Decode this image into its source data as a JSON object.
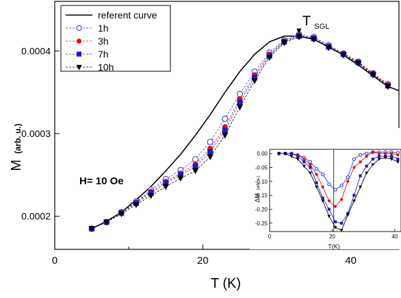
{
  "chart_data": [
    {
      "type": "scatter",
      "xlabel": "T (K)",
      "ylabel_main": "M",
      "ylabel_sub": "(arb. u.)",
      "xlim": [
        0,
        46.5
      ],
      "ylim": [
        0.00016,
        0.00046
      ],
      "x_ticks": [
        0,
        20,
        40
      ],
      "y_ticks": [
        0.0002,
        0.0003,
        0.0004
      ],
      "y_tick_labels": [
        "0.0002",
        "0.0003",
        "0.0004"
      ],
      "annotation_field": "H= 10 Oe",
      "annotation_tsgl_main": "T",
      "annotation_tsgl_sub": "SGL",
      "tsgl_x": 33,
      "legend_position": "top-left",
      "series": [
        {
          "name": "referent curve",
          "style": "line",
          "color": "#000000",
          "x": [
            5,
            7,
            9,
            11,
            13,
            15,
            17,
            19,
            21,
            23,
            25,
            27,
            29,
            31,
            33,
            35,
            37,
            39,
            41,
            43,
            45,
            46.5
          ],
          "y": [
            0.000185,
            0.000194,
            0.000205,
            0.00022,
            0.000236,
            0.000255,
            0.000275,
            0.000298,
            0.000323,
            0.00035,
            0.000375,
            0.000396,
            0.000411,
            0.000418,
            0.000418,
            0.000414,
            0.000405,
            0.000395,
            0.000383,
            0.00037,
            0.000357,
            0.000352
          ]
        },
        {
          "name": "1h",
          "marker": "open-circle",
          "color": "#3b3bd6",
          "x": [
            5,
            7,
            9,
            11,
            13,
            15,
            17,
            19,
            21,
            23,
            25,
            27,
            29,
            31,
            33,
            35,
            37,
            39,
            41,
            43,
            45
          ],
          "y": [
            0.000185,
            0.000193,
            0.000205,
            0.000218,
            0.000232,
            0.000245,
            0.000256,
            0.000269,
            0.00029,
            0.000318,
            0.000348,
            0.000375,
            0.000398,
            0.000413,
            0.00042,
            0.000417,
            0.000407,
            0.000397,
            0.000387,
            0.000373,
            0.00036
          ]
        },
        {
          "name": "3h",
          "marker": "filled-circle",
          "color": "#e01010",
          "x": [
            5,
            7,
            9,
            11,
            13,
            15,
            17,
            19,
            21,
            23,
            25,
            27,
            29,
            31,
            33,
            35,
            37,
            39,
            41,
            43,
            45
          ],
          "y": [
            0.000185,
            0.000193,
            0.000205,
            0.000217,
            0.00023,
            0.000242,
            0.000252,
            0.000263,
            0.000282,
            0.000308,
            0.000342,
            0.000371,
            0.000396,
            0.000412,
            0.000419,
            0.000416,
            0.000406,
            0.000397,
            0.000387,
            0.000373,
            0.000359
          ]
        },
        {
          "name": "7h",
          "marker": "filled-square",
          "color": "#1b1bcc",
          "x": [
            5,
            7,
            9,
            11,
            13,
            15,
            17,
            19,
            21,
            23,
            25,
            27,
            29,
            31,
            33,
            35,
            37,
            39,
            41,
            43,
            45
          ],
          "y": [
            0.000185,
            0.000193,
            0.000204,
            0.000216,
            0.000228,
            0.00024,
            0.00025,
            0.00026,
            0.000278,
            0.000304,
            0.000338,
            0.000368,
            0.000394,
            0.000411,
            0.000418,
            0.000415,
            0.000405,
            0.000396,
            0.000386,
            0.000372,
            0.000358
          ]
        },
        {
          "name": "10h",
          "marker": "filled-triangle-down",
          "color": "#000000",
          "x": [
            5,
            7,
            9,
            11,
            13,
            15,
            17,
            19,
            21,
            23,
            25,
            27,
            29,
            31,
            33,
            35,
            37,
            39,
            41,
            43,
            45
          ],
          "y": [
            0.000185,
            0.000193,
            0.000203,
            0.000214,
            0.000225,
            0.000236,
            0.000246,
            0.000255,
            0.000272,
            0.000298,
            0.000332,
            0.000364,
            0.000392,
            0.00041,
            0.000417,
            0.000414,
            0.000404,
            0.000395,
            0.000385,
            0.000371,
            0.000357
          ]
        }
      ]
    },
    {
      "type": "scatter",
      "role": "inset",
      "xlabel": "T(K)",
      "ylabel_main": "ΔM",
      "ylabel_sub": "(arb. u.)",
      "xlim": [
        0,
        42
      ],
      "ylim": [
        -0.28,
        0.015
      ],
      "x_ticks": [
        0,
        20,
        40
      ],
      "y_ticks": [
        0.0,
        -0.05,
        -0.1,
        -0.15,
        -0.2,
        -0.25
      ],
      "y_tick_labels": [
        "0.00",
        "-0.05",
        "-0.10",
        "-0.15",
        "-0.20",
        "-0.25"
      ],
      "vline_x": 20.5,
      "series": [
        {
          "name": "1h",
          "marker": "open-circle",
          "color": "#3b3bd6",
          "x": [
            3,
            5,
            7,
            9,
            11,
            13,
            15,
            17,
            19,
            21,
            23,
            25,
            27,
            29,
            31,
            33,
            35,
            37,
            39,
            41
          ],
          "y": [
            0.0,
            0.0,
            0.0,
            -0.005,
            -0.015,
            -0.03,
            -0.055,
            -0.075,
            -0.11,
            -0.13,
            -0.115,
            -0.085,
            -0.02,
            -0.005,
            0.0,
            0.005,
            0.005,
            0.005,
            0.005,
            0.003
          ]
        },
        {
          "name": "3h",
          "marker": "filled-circle",
          "color": "#e01010",
          "x": [
            3,
            5,
            7,
            9,
            11,
            13,
            15,
            17,
            19,
            21,
            23,
            25,
            27,
            29,
            31,
            33,
            35,
            37,
            39,
            41
          ],
          "y": [
            0.0,
            0.0,
            0.0,
            -0.005,
            -0.02,
            -0.04,
            -0.075,
            -0.12,
            -0.17,
            -0.19,
            -0.165,
            -0.1,
            -0.05,
            -0.03,
            -0.01,
            0.005,
            0.0,
            0.0,
            0.0,
            -0.005
          ]
        },
        {
          "name": "7h",
          "marker": "filled-square",
          "color": "#1b1bcc",
          "x": [
            3,
            5,
            7,
            9,
            11,
            13,
            15,
            17,
            19,
            21,
            23,
            25,
            27,
            29,
            31,
            33,
            35,
            37,
            39,
            41
          ],
          "y": [
            0.0,
            0.0,
            0.0,
            -0.01,
            -0.03,
            -0.05,
            -0.105,
            -0.16,
            -0.2,
            -0.245,
            -0.25,
            -0.215,
            -0.15,
            -0.08,
            -0.045,
            -0.02,
            -0.01,
            -0.01,
            -0.01,
            -0.02
          ]
        },
        {
          "name": "10h",
          "marker": "filled-triangle-down",
          "color": "#000000",
          "x": [
            3,
            5,
            7,
            9,
            11,
            13,
            15,
            17,
            19,
            21,
            23,
            25,
            27,
            29,
            31,
            33,
            35,
            37,
            39,
            41
          ],
          "y": [
            0.0,
            0.0,
            -0.01,
            -0.02,
            -0.045,
            -0.07,
            -0.12,
            -0.17,
            -0.225,
            -0.265,
            -0.275,
            -0.22,
            -0.17,
            -0.12,
            -0.07,
            -0.04,
            -0.02,
            -0.015,
            -0.02,
            -0.03
          ]
        }
      ]
    }
  ]
}
